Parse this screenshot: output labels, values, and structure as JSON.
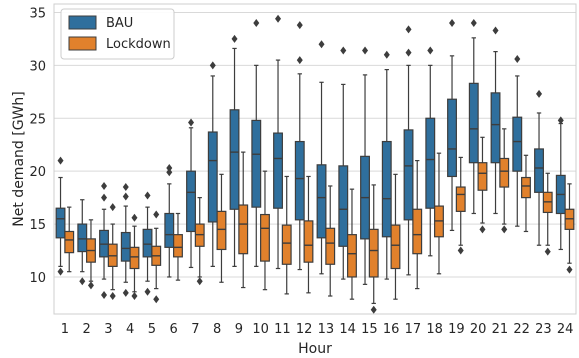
{
  "chart_data": {
    "type": "boxplot",
    "xlabel": "Hour",
    "ylabel": "Net demand [GWh]",
    "ylim": [
      6.5,
      35.8
    ],
    "yticks": [
      10,
      15,
      20,
      25,
      30,
      35
    ],
    "grid": true,
    "legend_position": "top-left",
    "colors": {
      "BAU": "#2f6f9d",
      "Lockdown": "#e1812c",
      "whisker": "#3d3d3d"
    },
    "categories": [
      "1",
      "2",
      "3",
      "4",
      "5",
      "6",
      "7",
      "8",
      "9",
      "10",
      "11",
      "12",
      "13",
      "14",
      "15",
      "16",
      "17",
      "18",
      "19",
      "20",
      "21",
      "22",
      "23",
      "24"
    ],
    "series": [
      {
        "name": "BAU",
        "boxes": [
          {
            "wlo": 11.0,
            "q1": 13.7,
            "med": 15.5,
            "q3": 16.5,
            "whi": 19.4,
            "fliers": [
              10.5,
              21.0
            ]
          },
          {
            "wlo": 10.5,
            "q1": 12.4,
            "med": 13.6,
            "q3": 15.0,
            "whi": 17.3,
            "fliers": [
              9.6
            ]
          },
          {
            "wlo": 9.8,
            "q1": 11.9,
            "med": 13.1,
            "q3": 14.4,
            "whi": 16.4,
            "fliers": [
              8.3,
              17.5,
              18.6
            ]
          },
          {
            "wlo": 9.5,
            "q1": 11.5,
            "med": 12.7,
            "q3": 14.2,
            "whi": 16.7,
            "fliers": [
              8.5,
              17.6,
              18.5
            ]
          },
          {
            "wlo": 9.6,
            "q1": 11.9,
            "med": 13.1,
            "q3": 14.5,
            "whi": 16.6,
            "fliers": [
              8.6,
              17.7
            ]
          },
          {
            "wlo": 10.0,
            "q1": 12.8,
            "med": 14.0,
            "q3": 16.0,
            "whi": 18.8,
            "fliers": [
              19.9,
              20.3
            ]
          },
          {
            "wlo": 10.9,
            "q1": 14.3,
            "med": 18.0,
            "q3": 20.0,
            "whi": 24.1,
            "fliers": [
              24.6
            ]
          },
          {
            "wlo": 11.0,
            "q1": 15.2,
            "med": 21.0,
            "q3": 23.7,
            "whi": 29.0,
            "fliers": [
              30.0
            ]
          },
          {
            "wlo": 11.0,
            "q1": 16.4,
            "med": 21.8,
            "q3": 25.8,
            "whi": 31.6,
            "fliers": [
              32.5
            ]
          },
          {
            "wlo": 11.0,
            "q1": 16.6,
            "med": 21.6,
            "q3": 24.8,
            "whi": 30.0,
            "fliers": [
              34.0
            ]
          },
          {
            "wlo": 10.8,
            "q1": 16.5,
            "med": 21.2,
            "q3": 23.6,
            "whi": 30.5,
            "fliers": [
              34.4
            ]
          },
          {
            "wlo": 10.7,
            "q1": 15.4,
            "med": 19.3,
            "q3": 22.8,
            "whi": 29.2,
            "fliers": [
              30.5,
              33.8
            ]
          },
          {
            "wlo": 10.3,
            "q1": 13.7,
            "med": 17.5,
            "q3": 20.6,
            "whi": 28.4,
            "fliers": [
              32.0
            ]
          },
          {
            "wlo": 9.8,
            "q1": 12.9,
            "med": 16.4,
            "q3": 20.5,
            "whi": 28.2,
            "fliers": [
              31.4
            ]
          },
          {
            "wlo": 9.3,
            "q1": 13.6,
            "med": 17.5,
            "q3": 21.4,
            "whi": 29.1,
            "fliers": [
              31.4
            ]
          },
          {
            "wlo": 9.8,
            "q1": 13.8,
            "med": 17.4,
            "q3": 22.8,
            "whi": 29.6,
            "fliers": [
              31.0
            ]
          },
          {
            "wlo": 10.2,
            "q1": 15.4,
            "med": 20.5,
            "q3": 23.9,
            "whi": 30.0,
            "fliers": [
              31.2,
              33.4
            ]
          },
          {
            "wlo": 12.0,
            "q1": 16.5,
            "med": 21.1,
            "q3": 25.0,
            "whi": 30.0,
            "fliers": [
              31.4
            ]
          },
          {
            "wlo": 14.4,
            "q1": 19.5,
            "med": 22.1,
            "q3": 26.8,
            "whi": 30.9,
            "fliers": [
              34.0
            ]
          },
          {
            "wlo": 16.0,
            "q1": 20.8,
            "med": 24.0,
            "q3": 28.3,
            "whi": 32.6,
            "fliers": [
              34.0
            ]
          },
          {
            "wlo": 16.0,
            "q1": 20.8,
            "med": 24.4,
            "q3": 27.4,
            "whi": 31.3,
            "fliers": [
              33.3
            ]
          },
          {
            "wlo": 14.8,
            "q1": 20.0,
            "med": 22.8,
            "q3": 25.1,
            "whi": 29.0,
            "fliers": [
              30.6
            ]
          },
          {
            "wlo": 13.0,
            "q1": 18.0,
            "med": 20.3,
            "q3": 22.1,
            "whi": 25.5,
            "fliers": [
              27.3
            ]
          },
          {
            "wlo": 12.6,
            "q1": 16.0,
            "med": 17.8,
            "q3": 19.6,
            "whi": 24.5,
            "fliers": [
              24.8
            ]
          }
        ]
      },
      {
        "name": "Lockdown",
        "boxes": [
          {
            "wlo": 10.5,
            "q1": 12.3,
            "med": 13.5,
            "q3": 14.3,
            "whi": 16.6,
            "fliers": []
          },
          {
            "wlo": 9.6,
            "q1": 11.4,
            "med": 12.5,
            "q3": 13.6,
            "whi": 15.4,
            "fliers": [
              9.2
            ]
          },
          {
            "wlo": 8.8,
            "q1": 11.0,
            "med": 12.0,
            "q3": 13.1,
            "whi": 15.0,
            "fliers": [
              8.2,
              16.6
            ]
          },
          {
            "wlo": 8.6,
            "q1": 10.8,
            "med": 11.9,
            "q3": 12.8,
            "whi": 14.8,
            "fliers": [
              8.2,
              15.6
            ]
          },
          {
            "wlo": 8.9,
            "q1": 11.1,
            "med": 12.0,
            "q3": 12.9,
            "whi": 14.6,
            "fliers": [
              7.9,
              15.9
            ]
          },
          {
            "wlo": 9.7,
            "q1": 11.9,
            "med": 12.8,
            "q3": 14.0,
            "whi": 16.0,
            "fliers": []
          },
          {
            "wlo": 10.0,
            "q1": 12.9,
            "med": 14.0,
            "q3": 15.0,
            "whi": 17.5,
            "fliers": [
              9.6
            ]
          },
          {
            "wlo": 9.5,
            "q1": 12.6,
            "med": 14.5,
            "q3": 16.2,
            "whi": 19.7,
            "fliers": []
          },
          {
            "wlo": 9.0,
            "q1": 12.2,
            "med": 15.0,
            "q3": 16.8,
            "whi": 21.8,
            "fliers": []
          },
          {
            "wlo": 8.8,
            "q1": 11.5,
            "med": 14.6,
            "q3": 15.9,
            "whi": 20.0,
            "fliers": []
          },
          {
            "wlo": 8.4,
            "q1": 11.2,
            "med": 13.2,
            "q3": 14.9,
            "whi": 19.5,
            "fliers": []
          },
          {
            "wlo": 8.5,
            "q1": 11.4,
            "med": 13.0,
            "q3": 15.3,
            "whi": 19.5,
            "fliers": []
          },
          {
            "wlo": 8.2,
            "q1": 11.2,
            "med": 13.2,
            "q3": 14.6,
            "whi": 18.6,
            "fliers": []
          },
          {
            "wlo": 7.9,
            "q1": 10.0,
            "med": 12.2,
            "q3": 14.0,
            "whi": 18.3,
            "fliers": []
          },
          {
            "wlo": 7.5,
            "q1": 10.0,
            "med": 12.5,
            "q3": 14.5,
            "whi": 18.7,
            "fliers": [
              6.9
            ]
          },
          {
            "wlo": 7.9,
            "q1": 10.8,
            "med": 13.0,
            "q3": 14.9,
            "whi": 19.7,
            "fliers": []
          },
          {
            "wlo": 8.9,
            "q1": 12.2,
            "med": 14.0,
            "q3": 16.4,
            "whi": 21.0,
            "fliers": []
          },
          {
            "wlo": 10.3,
            "q1": 13.8,
            "med": 15.3,
            "q3": 16.7,
            "whi": 21.7,
            "fliers": []
          },
          {
            "wlo": 13.0,
            "q1": 16.2,
            "med": 17.8,
            "q3": 18.5,
            "whi": 21.3,
            "fliers": [
              12.5
            ]
          },
          {
            "wlo": 15.1,
            "q1": 18.2,
            "med": 19.8,
            "q3": 20.8,
            "whi": 23.2,
            "fliers": [
              14.5
            ]
          },
          {
            "wlo": 15.0,
            "q1": 18.5,
            "med": 20.0,
            "q3": 21.2,
            "whi": 24.0,
            "fliers": [
              14.5
            ]
          },
          {
            "wlo": 14.3,
            "q1": 17.5,
            "med": 18.6,
            "q3": 19.4,
            "whi": 21.5,
            "fliers": []
          },
          {
            "wlo": 13.0,
            "q1": 16.1,
            "med": 17.1,
            "q3": 18.0,
            "whi": 19.8,
            "fliers": [
              12.4
            ]
          },
          {
            "wlo": 11.3,
            "q1": 14.5,
            "med": 15.5,
            "q3": 16.4,
            "whi": 18.8,
            "fliers": [
              10.7
            ]
          }
        ]
      }
    ]
  }
}
